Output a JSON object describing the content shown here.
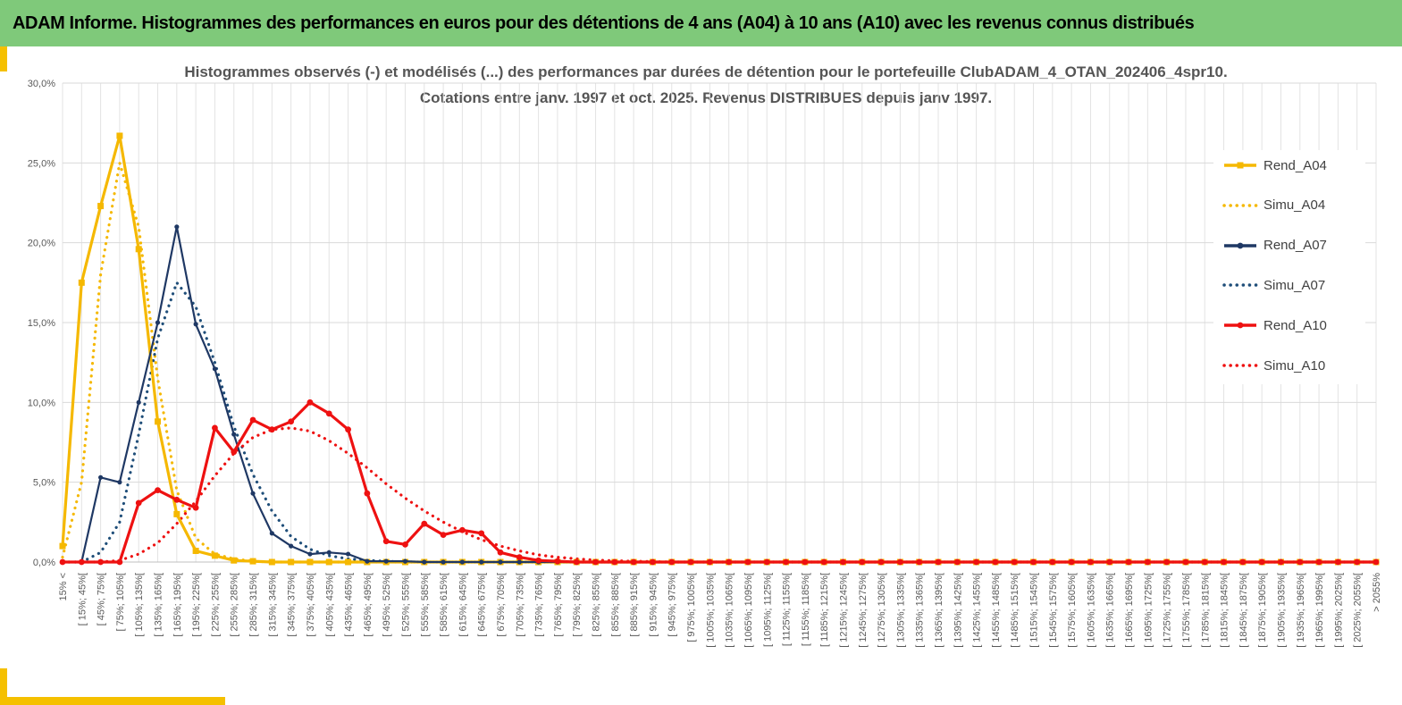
{
  "banner": {
    "title": "ADAM Informe. Histogrammes des performances en euros pour des détentions de 4 ans (A04) à 10 ans (A10) avec les revenus connus distribués"
  },
  "colors": {
    "banner_bg": "#7fc97a",
    "accent": "#f5c000",
    "A04": "#f5b800",
    "A07": "#1f3864",
    "A10": "#ee1111"
  },
  "chart_data": {
    "type": "line",
    "title_line1": "Histogrammes observés (-) et modélisés (...) des performances par durées de détention pour le portefeuille ClubADAM_4_OTAN_202406_4spr10.",
    "title_line2": "Cotations  entre janv. 1997 et oct. 2025. Revenus DISTRIBUES depuis janv 1997.",
    "ylim": [
      0,
      30
    ],
    "y_ticks": [
      "0,0%",
      "5,0%",
      "10,0%",
      "15,0%",
      "20,0%",
      "25,0%",
      "30,0%"
    ],
    "grid": true,
    "legend_position": "right",
    "categories": [
      "15% <",
      "[ 15%; 45%[",
      "[ 45%; 75%[",
      "[ 75%; 105%[",
      "[ 105%; 135%[",
      "[ 135%; 165%[",
      "[ 165%; 195%[",
      "[ 195%; 225%[",
      "[ 225%; 255%[",
      "[ 255%; 285%[",
      "[ 285%; 315%[",
      "[ 315%; 345%[",
      "[ 345%; 375%[",
      "[ 375%; 405%[",
      "[ 405%; 435%[",
      "[ 435%; 465%[",
      "[ 465%; 495%[",
      "[ 495%; 525%[",
      "[ 525%; 555%[",
      "[ 555%; 585%[",
      "[ 585%; 615%[",
      "[ 615%; 645%[",
      "[ 645%; 675%[",
      "[ 675%; 705%[",
      "[ 705%; 735%[",
      "[ 735%; 765%[",
      "[ 765%; 795%[",
      "[ 795%; 825%[",
      "[ 825%; 855%[",
      "[ 855%; 885%[",
      "[ 885%; 915%[",
      "[ 915%; 945%[",
      "[ 945%; 975%[",
      "[ 975%; 1005%[",
      "[ 1005%; 1035%[",
      "[ 1035%; 1065%[",
      "[ 1065%; 1095%[",
      "[ 1095%; 1125%[",
      "[ 1125%; 1155%[",
      "[ 1155%; 1185%[",
      "[ 1185%; 1215%[",
      "[ 1215%; 1245%[",
      "[ 1245%; 1275%[",
      "[ 1275%; 1305%[",
      "[ 1305%; 1335%[",
      "[ 1335%; 1365%[",
      "[ 1365%; 1395%[",
      "[ 1395%; 1425%[",
      "[ 1425%; 1455%[",
      "[ 1455%; 1485%[",
      "[ 1485%; 1515%[",
      "[ 1515%; 1545%[",
      "[ 1545%; 1575%[",
      "[ 1575%; 1605%[",
      "[ 1605%; 1635%[",
      "[ 1635%; 1665%[",
      "[ 1665%; 1695%[",
      "[ 1695%; 1725%[",
      "[ 1725%; 1755%[",
      "[ 1755%; 1785%[",
      "[ 1785%; 1815%[",
      "[ 1815%; 1845%[",
      "[ 1845%; 1875%[",
      "[ 1875%; 1905%[",
      "[ 1905%; 1935%[",
      "[ 1935%; 1965%[",
      "[ 1965%; 1995%[",
      "[ 1995%; 2025%[",
      "[ 2025%; 2055%[",
      "> 2055%"
    ],
    "series": [
      {
        "name": "Rend_A04",
        "color": "#f5b800",
        "style": "solid",
        "values": [
          1.0,
          17.5,
          22.3,
          26.7,
          19.6,
          8.8,
          3.0,
          0.7,
          0.4,
          0.1,
          0.05,
          0,
          0,
          0,
          0,
          0,
          0,
          0,
          0,
          0,
          0,
          0,
          0,
          0,
          0,
          0,
          0,
          0,
          0,
          0,
          0,
          0,
          0,
          0,
          0,
          0,
          0,
          0,
          0,
          0,
          0,
          0,
          0,
          0,
          0,
          0,
          0,
          0,
          0,
          0,
          0,
          0,
          0,
          0,
          0,
          0,
          0,
          0,
          0,
          0,
          0,
          0,
          0,
          0,
          0,
          0,
          0,
          0,
          0,
          0
        ]
      },
      {
        "name": "Simu_A04",
        "color": "#f5b800",
        "style": "dotted",
        "values": [
          0.3,
          5.0,
          18.0,
          25.0,
          21.0,
          11.5,
          4.5,
          1.5,
          0.5,
          0.2,
          0.05,
          0,
          0,
          0,
          0,
          0,
          0,
          0,
          0,
          0,
          0,
          0,
          0,
          0,
          0,
          0,
          0,
          0,
          0,
          0,
          0,
          0,
          0,
          0,
          0,
          0,
          0,
          0,
          0,
          0,
          0,
          0,
          0,
          0,
          0,
          0,
          0,
          0,
          0,
          0,
          0,
          0,
          0,
          0,
          0,
          0,
          0,
          0,
          0,
          0,
          0,
          0,
          0,
          0,
          0,
          0,
          0,
          0,
          0,
          0
        ]
      },
      {
        "name": "Rend_A07",
        "color": "#1f3864",
        "style": "solid",
        "values": [
          0,
          0,
          5.3,
          5.0,
          10.0,
          15.0,
          21.0,
          14.9,
          12.1,
          8.0,
          4.3,
          1.8,
          1.0,
          0.5,
          0.6,
          0.5,
          0.05,
          0.05,
          0.05,
          0,
          0,
          0,
          0,
          0,
          0,
          0,
          0,
          0,
          0,
          0,
          0,
          0,
          0,
          0,
          0,
          0,
          0,
          0,
          0,
          0,
          0,
          0,
          0,
          0,
          0,
          0,
          0,
          0,
          0,
          0,
          0,
          0,
          0,
          0,
          0,
          0,
          0,
          0,
          0,
          0,
          0,
          0,
          0,
          0,
          0,
          0,
          0,
          0,
          0,
          0
        ]
      },
      {
        "name": "Simu_A07",
        "color": "#1f4e79",
        "style": "dotted",
        "values": [
          0,
          0,
          0.6,
          2.5,
          8.0,
          14.0,
          17.5,
          16.0,
          12.5,
          8.5,
          5.5,
          3.2,
          1.6,
          0.8,
          0.4,
          0.2,
          0.1,
          0.05,
          0,
          0,
          0,
          0,
          0,
          0,
          0,
          0,
          0,
          0,
          0,
          0,
          0,
          0,
          0,
          0,
          0,
          0,
          0,
          0,
          0,
          0,
          0,
          0,
          0,
          0,
          0,
          0,
          0,
          0,
          0,
          0,
          0,
          0,
          0,
          0,
          0,
          0,
          0,
          0,
          0,
          0,
          0,
          0,
          0,
          0,
          0,
          0,
          0,
          0,
          0,
          0
        ]
      },
      {
        "name": "Rend_A10",
        "color": "#ee1111",
        "style": "solid",
        "values": [
          0,
          0,
          0,
          0,
          3.7,
          4.5,
          3.9,
          3.4,
          8.4,
          6.9,
          8.9,
          8.3,
          8.8,
          10.0,
          9.3,
          8.3,
          4.3,
          1.3,
          1.1,
          2.4,
          1.7,
          2.0,
          1.8,
          0.6,
          0.3,
          0.1,
          0.05,
          0,
          0,
          0,
          0,
          0,
          0,
          0,
          0,
          0,
          0,
          0,
          0,
          0,
          0,
          0,
          0,
          0,
          0,
          0,
          0,
          0,
          0,
          0,
          0,
          0,
          0,
          0,
          0,
          0,
          0,
          0,
          0,
          0,
          0,
          0,
          0,
          0,
          0,
          0,
          0,
          0,
          0,
          0
        ]
      },
      {
        "name": "Simu_A10",
        "color": "#ee1111",
        "style": "dotted",
        "values": [
          0,
          0,
          0,
          0.1,
          0.5,
          1.2,
          2.4,
          3.8,
          5.4,
          6.8,
          7.8,
          8.3,
          8.4,
          8.2,
          7.6,
          6.8,
          5.9,
          4.9,
          4.0,
          3.2,
          2.5,
          1.9,
          1.4,
          1.0,
          0.7,
          0.45,
          0.3,
          0.2,
          0.12,
          0.08,
          0.05,
          0.03,
          0,
          0,
          0,
          0,
          0,
          0,
          0,
          0,
          0,
          0,
          0,
          0,
          0,
          0,
          0,
          0,
          0,
          0,
          0,
          0,
          0,
          0,
          0,
          0,
          0,
          0,
          0,
          0,
          0,
          0,
          0,
          0,
          0,
          0,
          0,
          0,
          0,
          0
        ]
      }
    ]
  }
}
